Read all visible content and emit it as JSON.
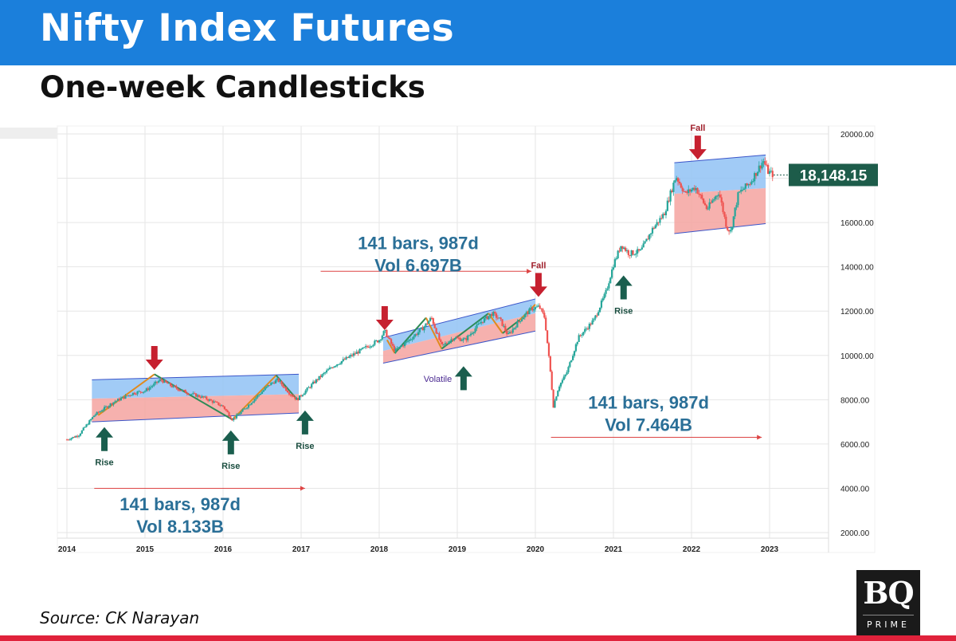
{
  "header": {
    "title": "Nifty Index Futures",
    "subtitle": "One-week Candlesticks"
  },
  "footer": {
    "source": "Source: CK Narayan",
    "logo_main": "BQ",
    "logo_sub": "PRIME"
  },
  "colors": {
    "banner": "#1b7fdb",
    "accent_red": "#e0223b",
    "up": "#26a69a",
    "down": "#ef5350",
    "channel_upper": "#90c2f5",
    "channel_lower": "#f4a3a0",
    "arrow_up": "#1a5e4e",
    "arrow_down": "#c6202f",
    "annotation_text": "#2a6f97",
    "price_badge": "#1d5c4a",
    "grid": "#e6e6e6"
  },
  "chart_data": {
    "type": "candlestick",
    "x_axis": {
      "ticks": [
        "2014",
        "2015",
        "2016",
        "2017",
        "2018",
        "2019",
        "2020",
        "2021",
        "2022",
        "2023"
      ]
    },
    "y_axis": {
      "ticks": [
        "2000.00",
        "4000.00",
        "6000.00",
        "8000.00",
        "10000.00",
        "12000.00",
        "14000.00",
        "16000.00",
        "18000.00",
        "20000.00"
      ],
      "range": [
        1500,
        20300
      ]
    },
    "grid": true,
    "last_price": "18,148.15",
    "price_path": [
      [
        2014.0,
        6200
      ],
      [
        2014.15,
        6400
      ],
      [
        2014.35,
        7300
      ],
      [
        2014.6,
        7900
      ],
      [
        2014.85,
        8300
      ],
      [
        2015.0,
        8400
      ],
      [
        2015.2,
        8900
      ],
      [
        2015.35,
        8600
      ],
      [
        2015.55,
        8300
      ],
      [
        2015.75,
        8100
      ],
      [
        2016.0,
        7700
      ],
      [
        2016.12,
        7100
      ],
      [
        2016.25,
        7500
      ],
      [
        2016.45,
        8200
      ],
      [
        2016.6,
        8700
      ],
      [
        2016.7,
        8900
      ],
      [
        2016.85,
        8300
      ],
      [
        2016.95,
        8000
      ],
      [
        2017.0,
        8200
      ],
      [
        2017.2,
        8900
      ],
      [
        2017.4,
        9500
      ],
      [
        2017.6,
        9900
      ],
      [
        2017.8,
        10300
      ],
      [
        2018.0,
        10700
      ],
      [
        2018.07,
        11100
      ],
      [
        2018.2,
        10200
      ],
      [
        2018.35,
        10600
      ],
      [
        2018.55,
        11200
      ],
      [
        2018.67,
        11700
      ],
      [
        2018.8,
        10400
      ],
      [
        2018.95,
        10800
      ],
      [
        2019.1,
        10700
      ],
      [
        2019.3,
        11500
      ],
      [
        2019.45,
        11900
      ],
      [
        2019.55,
        11600
      ],
      [
        2019.65,
        10900
      ],
      [
        2019.8,
        11600
      ],
      [
        2019.95,
        12100
      ],
      [
        2020.05,
        12200
      ],
      [
        2020.12,
        11700
      ],
      [
        2020.2,
        9000
      ],
      [
        2020.23,
        7700
      ],
      [
        2020.3,
        8600
      ],
      [
        2020.4,
        9200
      ],
      [
        2020.55,
        10800
      ],
      [
        2020.75,
        11600
      ],
      [
        2020.9,
        12800
      ],
      [
        2021.0,
        14100
      ],
      [
        2021.1,
        15000
      ],
      [
        2021.2,
        14600
      ],
      [
        2021.35,
        14700
      ],
      [
        2021.5,
        15700
      ],
      [
        2021.65,
        16400
      ],
      [
        2021.8,
        18100
      ],
      [
        2021.92,
        17300
      ],
      [
        2022.05,
        17600
      ],
      [
        2022.2,
        16600
      ],
      [
        2022.35,
        17400
      ],
      [
        2022.45,
        15800
      ],
      [
        2022.5,
        15600
      ],
      [
        2022.6,
        17300
      ],
      [
        2022.75,
        17800
      ],
      [
        2022.92,
        18800
      ],
      [
        2022.98,
        18300
      ],
      [
        2023.05,
        18148
      ]
    ],
    "channels": [
      {
        "x0": 2014.32,
        "x1": 2016.97,
        "top0": 8900,
        "top1": 9150,
        "mid0": 8050,
        "mid1": 8250,
        "bot0": 7000,
        "bot1": 7400
      },
      {
        "x0": 2018.05,
        "x1": 2020.0,
        "top0": 10800,
        "top1": 12550,
        "mid0": 10200,
        "mid1": 11900,
        "bot0": 9650,
        "bot1": 11100
      },
      {
        "x0": 2021.78,
        "x1": 2022.95,
        "top0": 18700,
        "top1": 19050,
        "mid0": 17300,
        "mid1": 17550,
        "bot0": 15500,
        "bot1": 15950
      }
    ],
    "arrows": [
      {
        "dir": "up",
        "x": 2014.48,
        "y": 7050,
        "label": "Rise"
      },
      {
        "dir": "down",
        "x": 2015.12,
        "y": 9200
      },
      {
        "dir": "up",
        "x": 2016.1,
        "y": 6900,
        "label": "Rise"
      },
      {
        "dir": "up",
        "x": 2017.05,
        "y": 7800,
        "label": "Rise"
      },
      {
        "dir": "down",
        "x": 2018.07,
        "y": 11000
      },
      {
        "dir": "up",
        "x": 2019.08,
        "y": 9800,
        "label": ""
      },
      {
        "dir": "down",
        "x": 2020.04,
        "y": 12500,
        "label": "Fall"
      },
      {
        "dir": "up",
        "x": 2021.13,
        "y": 13900,
        "label": "Rise"
      },
      {
        "dir": "down",
        "x": 2022.08,
        "y": 18700,
        "label": "Fall"
      }
    ],
    "annotations": {
      "volatile": "Volatile",
      "measure_boxes": [
        {
          "line1": "141 bars, 987d",
          "line2": "Vol 8.133B",
          "x": 2015.45,
          "y": 3000,
          "range_x0": 2014.35,
          "range_x1": 2017.05,
          "range_y": 4000
        },
        {
          "line1": "141 bars, 987d",
          "line2": "Vol 6.697B",
          "x": 2018.5,
          "y": 14800,
          "range_x0": 2017.25,
          "range_x1": 2019.95,
          "range_y": 13800
        },
        {
          "line1": "141 bars, 987d",
          "line2": "Vol 7.464B",
          "x": 2021.45,
          "y": 7600,
          "range_x0": 2020.2,
          "range_x1": 2022.9,
          "range_y": 6300
        }
      ]
    }
  }
}
